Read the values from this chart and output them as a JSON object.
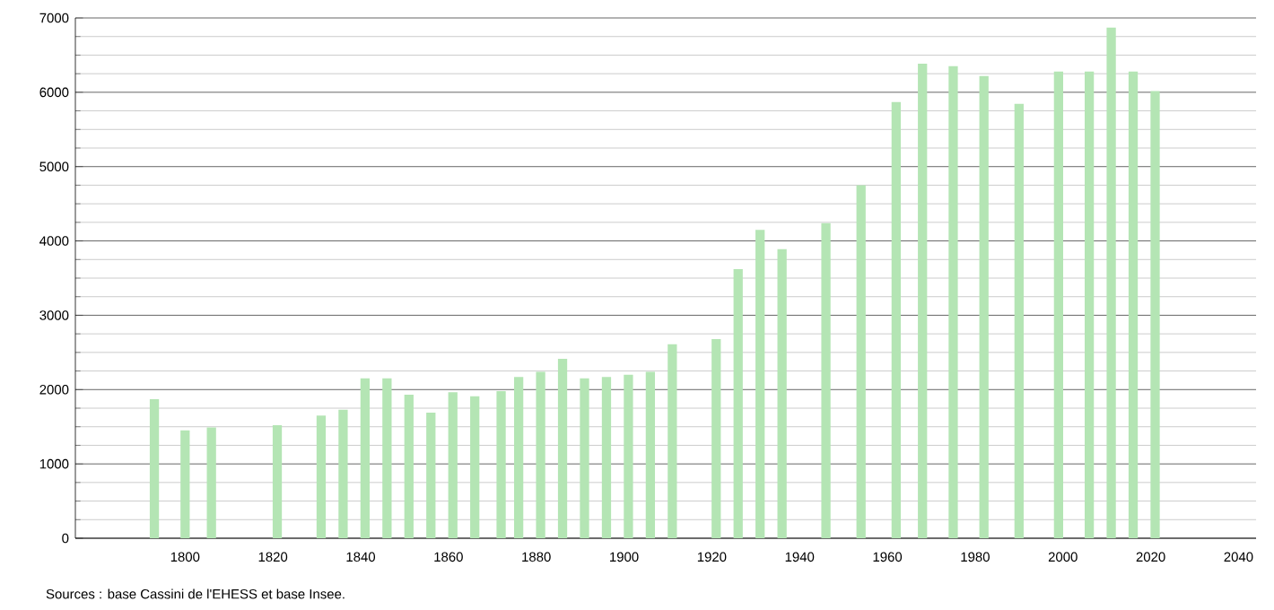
{
  "chart_data": {
    "type": "bar",
    "color": "#b4e5b4",
    "x": [
      1793,
      1800,
      1806,
      1821,
      1831,
      1836,
      1841,
      1846,
      1851,
      1856,
      1861,
      1866,
      1872,
      1876,
      1881,
      1886,
      1891,
      1896,
      1901,
      1906,
      1911,
      1921,
      1926,
      1931,
      1936,
      1946,
      1954,
      1962,
      1968,
      1975,
      1982,
      1990,
      1999,
      2006,
      2011,
      2016,
      2021
    ],
    "values": [
      1870,
      1450,
      1490,
      1520,
      1650,
      1730,
      2150,
      2150,
      1930,
      1690,
      1965,
      1910,
      1980,
      2170,
      2240,
      2415,
      2150,
      2170,
      2200,
      2240,
      2610,
      2680,
      3620,
      4150,
      3890,
      4240,
      4750,
      5870,
      6385,
      6350,
      6220,
      5845,
      6280,
      6280,
      6870,
      6280,
      6015
    ],
    "xlim": [
      1775,
      2044
    ],
    "xticks": [
      1800,
      1820,
      1840,
      1860,
      1880,
      1900,
      1920,
      1940,
      1960,
      1980,
      2000,
      2020,
      2040
    ],
    "ylim": [
      0,
      7000
    ],
    "yticks": [
      0,
      1000,
      2000,
      3000,
      4000,
      5000,
      6000,
      7000
    ],
    "grid": "y",
    "annotations": [
      "Sources : base Cassini de l'EHESS et base Insee."
    ]
  }
}
